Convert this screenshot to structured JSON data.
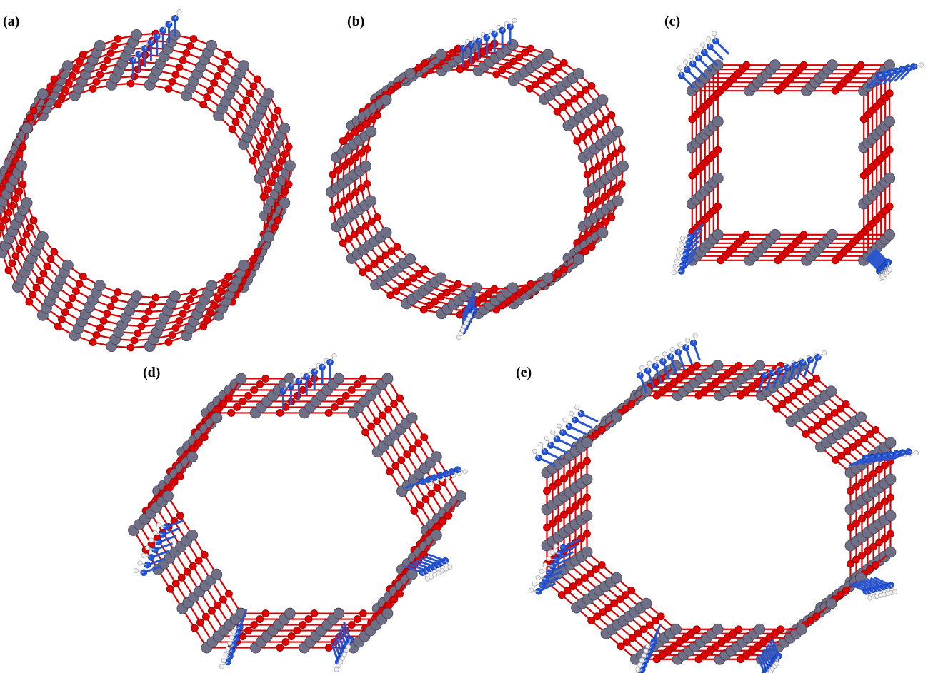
{
  "figure": {
    "panels": [
      {
        "id": "a",
        "label": "(a)",
        "shape": "circular-nanotube",
        "amine_groups": 1
      },
      {
        "id": "b",
        "label": "(b)",
        "shape": "circular-nanotube",
        "amine_groups": 2
      },
      {
        "id": "c",
        "label": "(c)",
        "shape": "faceted-nanotube",
        "amine_groups": 4
      },
      {
        "id": "d",
        "label": "(d)",
        "shape": "faceted-nanotube",
        "amine_groups": 6
      },
      {
        "id": "e",
        "label": "(e)",
        "shape": "faceted-nanotube",
        "amine_groups": 8
      }
    ]
  },
  "atom_colors": {
    "framework_atom": "#6f6f86",
    "oxygen_atom": "#e00000",
    "nitrogen_atom": "#2255dd",
    "hydrogen_atom": "#f0f0f0",
    "bond_red": "#d80000",
    "bond_blue": "#2a55cc"
  }
}
